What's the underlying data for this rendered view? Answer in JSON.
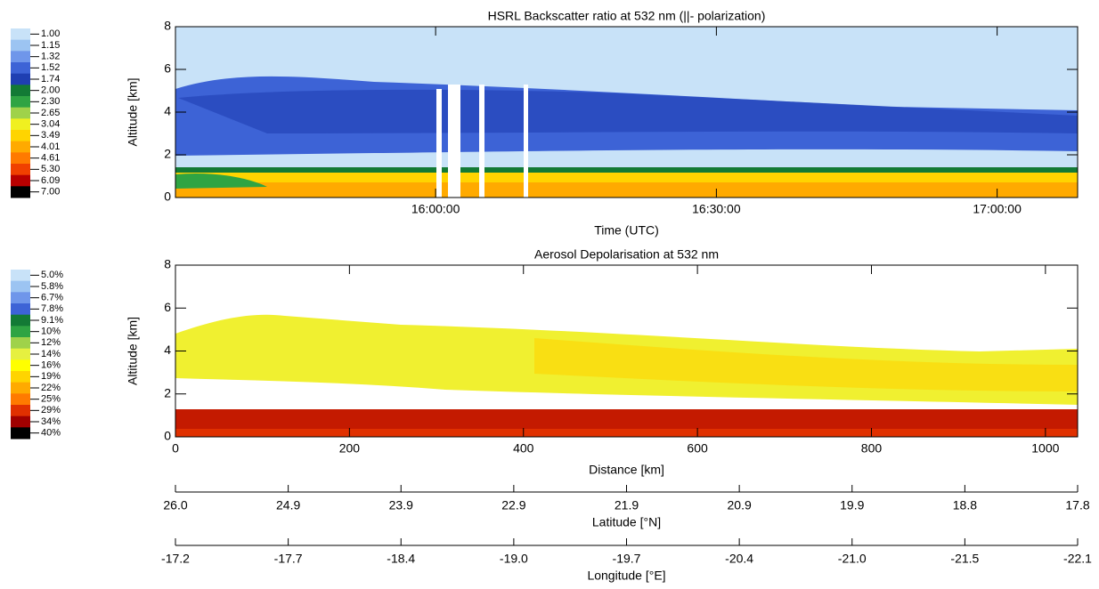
{
  "chart_data": [
    {
      "type": "heatmap",
      "title": "HSRL Backscatter ratio at 532 nm (||- polarization)",
      "xlabel": "Time (UTC)",
      "ylabel": "Altitude [km]",
      "xlim": [
        932.2,
        1028.6
      ],
      "xticks": [
        {
          "value": 960,
          "label": "16:00:00"
        },
        {
          "value": 990,
          "label": "16:30:00"
        },
        {
          "value": 1020,
          "label": "17:00:00"
        }
      ],
      "ylim": [
        0,
        8
      ],
      "yticks": [
        0,
        2,
        4,
        6,
        8
      ],
      "colorbar": {
        "ticks": [
          {
            "value": 1.0,
            "label": "1.00"
          },
          {
            "value": 1.15,
            "label": "1.15"
          },
          {
            "value": 1.32,
            "label": "1.32"
          },
          {
            "value": 1.52,
            "label": "1.52"
          },
          {
            "value": 1.74,
            "label": "1.74"
          },
          {
            "value": 2.0,
            "label": "2.00"
          },
          {
            "value": 2.3,
            "label": "2.30"
          },
          {
            "value": 2.65,
            "label": "2.65"
          },
          {
            "value": 3.04,
            "label": "3.04"
          },
          {
            "value": 3.49,
            "label": "3.49"
          },
          {
            "value": 4.01,
            "label": "4.01"
          },
          {
            "value": 4.61,
            "label": "4.61"
          },
          {
            "value": 5.3,
            "label": "5.30"
          },
          {
            "value": 6.09,
            "label": "6.09"
          },
          {
            "value": 7.0,
            "label": "7.00"
          }
        ],
        "colors": [
          "#c8e2f8",
          "#9cc4f2",
          "#6f96ea",
          "#3d63d6",
          "#1f3fb2",
          "#137a35",
          "#2fa443",
          "#9fd24a",
          "#f0f020",
          "#ffd400",
          "#ffaa00",
          "#ff7a00",
          "#f04000",
          "#b80000",
          "#000000"
        ]
      }
    },
    {
      "type": "heatmap",
      "title": "Aerosol Depolarisation at 532 nm",
      "xlabel": "Distance [km]",
      "ylabel": "Altitude [km]",
      "xlim": [
        0,
        1037
      ],
      "xticks": [
        0,
        200,
        400,
        600,
        800,
        1000
      ],
      "ylim": [
        0,
        8
      ],
      "yticks": [
        0,
        2,
        4,
        6,
        8
      ],
      "colorbar": {
        "ticks": [
          {
            "value": 5.0,
            "label": "5.0%"
          },
          {
            "value": 5.8,
            "label": "5.8%"
          },
          {
            "value": 6.7,
            "label": "6.7%"
          },
          {
            "value": 7.8,
            "label": "7.8%"
          },
          {
            "value": 9.1,
            "label": "9.1%"
          },
          {
            "value": 10,
            "label": "10%"
          },
          {
            "value": 12,
            "label": "12%"
          },
          {
            "value": 14,
            "label": "14%"
          },
          {
            "value": 16,
            "label": "16%"
          },
          {
            "value": 19,
            "label": "19%"
          },
          {
            "value": 22,
            "label": "22%"
          },
          {
            "value": 25,
            "label": "25%"
          },
          {
            "value": 29,
            "label": "29%"
          },
          {
            "value": 34,
            "label": "34%"
          },
          {
            "value": 40,
            "label": "40%"
          }
        ],
        "colors": [
          "#c8e2f8",
          "#9cc4f2",
          "#6f96ea",
          "#3d63d6",
          "#137a35",
          "#2fa443",
          "#9fd24a",
          "#e6f040",
          "#ffff00",
          "#ffd400",
          "#ffaa00",
          "#ff7a00",
          "#e03000",
          "#a00000",
          "#000000"
        ]
      }
    },
    {
      "type": "axis",
      "xlabel": "Latitude [°N]",
      "categories": [
        "26.0",
        "24.9",
        "23.9",
        "22.9",
        "21.9",
        "20.9",
        "19.9",
        "18.8",
        "17.8"
      ]
    },
    {
      "type": "axis",
      "xlabel": "Longitude [°E]",
      "categories": [
        "-17.2",
        "-17.7",
        "-18.4",
        "-19.0",
        "-19.7",
        "-20.4",
        "-21.0",
        "-21.5",
        "-22.1"
      ]
    }
  ]
}
